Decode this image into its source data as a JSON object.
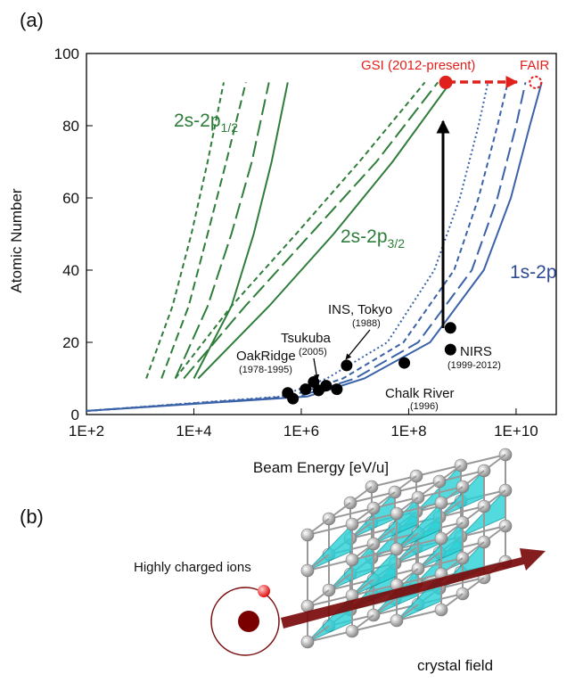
{
  "panel_a": {
    "label": "(a)"
  },
  "chart_data": {
    "type": "line",
    "xlabel": "Beam Energy [eV/u]",
    "ylabel": "Atomic Number",
    "xscale": "log",
    "xlim": [
      100,
      56000000000
    ],
    "ylim": [
      0,
      100
    ],
    "xticks": [
      {
        "value": 100,
        "label": "1E+2"
      },
      {
        "value": 10000,
        "label": "1E+4"
      },
      {
        "value": 1000000,
        "label": "1E+6"
      },
      {
        "value": 100000000,
        "label": "1E+8"
      },
      {
        "value": 10000000000,
        "label": "1E+10"
      }
    ],
    "yticks": [
      0,
      20,
      40,
      60,
      80,
      100
    ],
    "series": [
      {
        "color": "#2e7d3a",
        "dash": "6,4",
        "x": [
          1300,
          4000,
          9000,
          18000,
          36000
        ],
        "values": [
          10,
          30,
          50,
          70,
          92
        ]
      },
      {
        "color": "#2e7d3a",
        "dash": "10,5",
        "x": [
          2500,
          8000,
          18000,
          40000,
          93000
        ],
        "values": [
          10,
          30,
          50,
          70,
          92
        ]
      },
      {
        "color": "#2e7d3a",
        "dash": "18,6",
        "x": [
          4500,
          18000,
          50000,
          120000,
          250000
        ],
        "values": [
          10,
          30,
          50,
          70,
          92
        ]
      },
      {
        "color": "#2e7d3a",
        "dash": "none",
        "x": [
          10000,
          50000,
          130000,
          280000,
          560000
        ],
        "values": [
          10,
          30,
          50,
          70,
          92
        ]
      },
      {
        "color": "#2e7d3a",
        "dash": "6,4",
        "x": [
          4500,
          50000,
          800000,
          12000000,
          200000000
        ],
        "values": [
          10,
          30,
          50,
          70,
          92
        ]
      },
      {
        "color": "#2e7d3a",
        "dash": "18,6",
        "x": [
          6500,
          90000,
          1500000,
          25000000,
          350000000
        ],
        "values": [
          10,
          30,
          50,
          70,
          92
        ]
      },
      {
        "color": "#2e7d3a",
        "dash": "none",
        "x": [
          12000,
          250000,
          4000000,
          50000000,
          600000000
        ],
        "values": [
          10,
          30,
          50,
          70,
          92
        ]
      },
      {
        "color": "#3a62a8",
        "dash": "2,3",
        "x": [
          100,
          400000,
          3000000,
          40000000,
          300000000,
          900000000,
          2000000000,
          3000000000
        ],
        "values": [
          1,
          5,
          10,
          20,
          40,
          60,
          80,
          92
        ]
      },
      {
        "color": "#3a62a8",
        "dash": "6,4",
        "x": [
          100,
          600000,
          6000000,
          80000000,
          700000000,
          2000000000,
          4500000000,
          7000000000
        ],
        "values": [
          1,
          5,
          10,
          20,
          40,
          60,
          80,
          92
        ]
      },
      {
        "color": "#3a62a8",
        "dash": "16,6",
        "x": [
          100,
          900000,
          10000000,
          150000000,
          1500000000,
          4500000000,
          10000000000,
          15000000000
        ],
        "values": [
          1,
          5,
          10,
          20,
          40,
          60,
          80,
          92
        ]
      },
      {
        "color": "#3a62a8",
        "dash": "none",
        "x": [
          100,
          1300000,
          15000000,
          250000000,
          2500000000,
          8000000000,
          18000000000,
          30000000000
        ],
        "values": [
          1,
          5,
          10,
          20,
          40,
          60,
          80,
          92
        ]
      }
    ],
    "points": {
      "color": "#000000",
      "x": [
        560000,
        700000,
        1200000,
        1700000,
        2100000,
        2900000,
        4600000,
        7000000,
        83000000,
        600000000,
        600000000
      ],
      "values": [
        6,
        4.4,
        7,
        9,
        6.7,
        8,
        7,
        13.6,
        14.3,
        18,
        24
      ]
    },
    "markers": [
      {
        "color": "#e0201c",
        "filled": true,
        "x": 490000000,
        "value": 92
      },
      {
        "color": "#e0201c",
        "filled": false,
        "x": 23000000000,
        "value": 92
      }
    ],
    "annotations": {
      "gsi": "GSI (2012-present)",
      "fair": "FAIR",
      "half": {
        "text": "2s-2p",
        "sub": "1/2"
      },
      "threehalf": {
        "text": "2s-2p",
        "sub": "3/2"
      },
      "one": "1s-2p",
      "ins": "INS, Tokyo",
      "ins_year": "(1988)",
      "tsukuba": "Tsukuba",
      "tsukuba_year": "(2005)",
      "oak": "OakRidge",
      "oak_year": "(1978-1995)",
      "nirs": "NIRS",
      "nirs_year": "(1999-2012)",
      "chalk": "Chalk River",
      "chalk_year": "(1996)"
    }
  },
  "panel_b": {
    "label": "(b)",
    "ions": "Highly charged  ions",
    "crystal": "crystal field"
  }
}
